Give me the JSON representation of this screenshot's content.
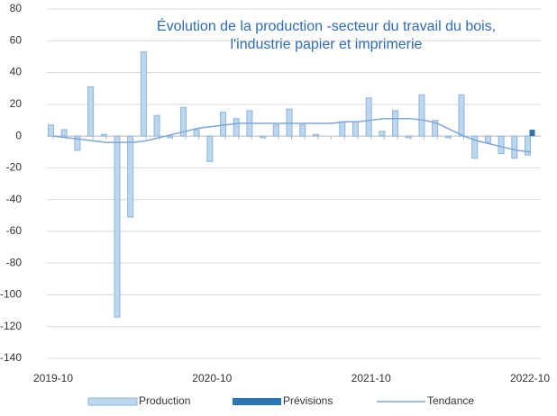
{
  "chart_data": {
    "type": "bar",
    "title": [
      "Évolution de la production -secteur du travail du bois,",
      "l'industrie papier et imprimerie"
    ],
    "categories": [
      "2019-10",
      null,
      null,
      null,
      null,
      null,
      null,
      null,
      null,
      null,
      null,
      null,
      "2020-10",
      null,
      null,
      null,
      null,
      null,
      null,
      null,
      null,
      null,
      null,
      null,
      "2021-10",
      null,
      null,
      null,
      null,
      null,
      null,
      null,
      null,
      null,
      null,
      null,
      "2022-10"
    ],
    "series": [
      {
        "name": "Production",
        "type": "bar",
        "color": "#bdd7ee",
        "stroke": "#8fb4de",
        "values": [
          7,
          4,
          -9,
          31,
          1,
          -114,
          -51,
          53,
          13,
          -1,
          18,
          4,
          -16,
          15,
          11,
          16,
          -1,
          7,
          17,
          7,
          1,
          0,
          9,
          9,
          24,
          3,
          16,
          -1,
          26,
          10,
          -1,
          26,
          -14,
          -4,
          -11,
          -14,
          -12
        ]
      },
      {
        "name": "Prévisions",
        "type": "bar",
        "color": "#2e75b6",
        "values": [
          null,
          null,
          null,
          null,
          null,
          null,
          null,
          null,
          null,
          null,
          null,
          null,
          null,
          null,
          null,
          null,
          null,
          null,
          null,
          null,
          null,
          null,
          null,
          null,
          null,
          null,
          null,
          null,
          null,
          null,
          null,
          null,
          null,
          null,
          null,
          null,
          4
        ]
      },
      {
        "name": "Tendance",
        "type": "line",
        "color": "#7fa7d6",
        "values": [
          0,
          -1,
          -2,
          -3,
          -4,
          -4,
          -4,
          -3,
          -1,
          1,
          3,
          5,
          6,
          7,
          8,
          8,
          8,
          8,
          8,
          8,
          8,
          8,
          9,
          9,
          10,
          11,
          11,
          11,
          10,
          8,
          4,
          0,
          -3,
          -5,
          -7,
          -9,
          -10
        ]
      }
    ],
    "ylim": [
      -140,
      80
    ],
    "yticks": [
      -140,
      -120,
      -100,
      -80,
      -60,
      -40,
      -20,
      0,
      20,
      40,
      60,
      80
    ],
    "grid": true,
    "legend": "bottom"
  }
}
